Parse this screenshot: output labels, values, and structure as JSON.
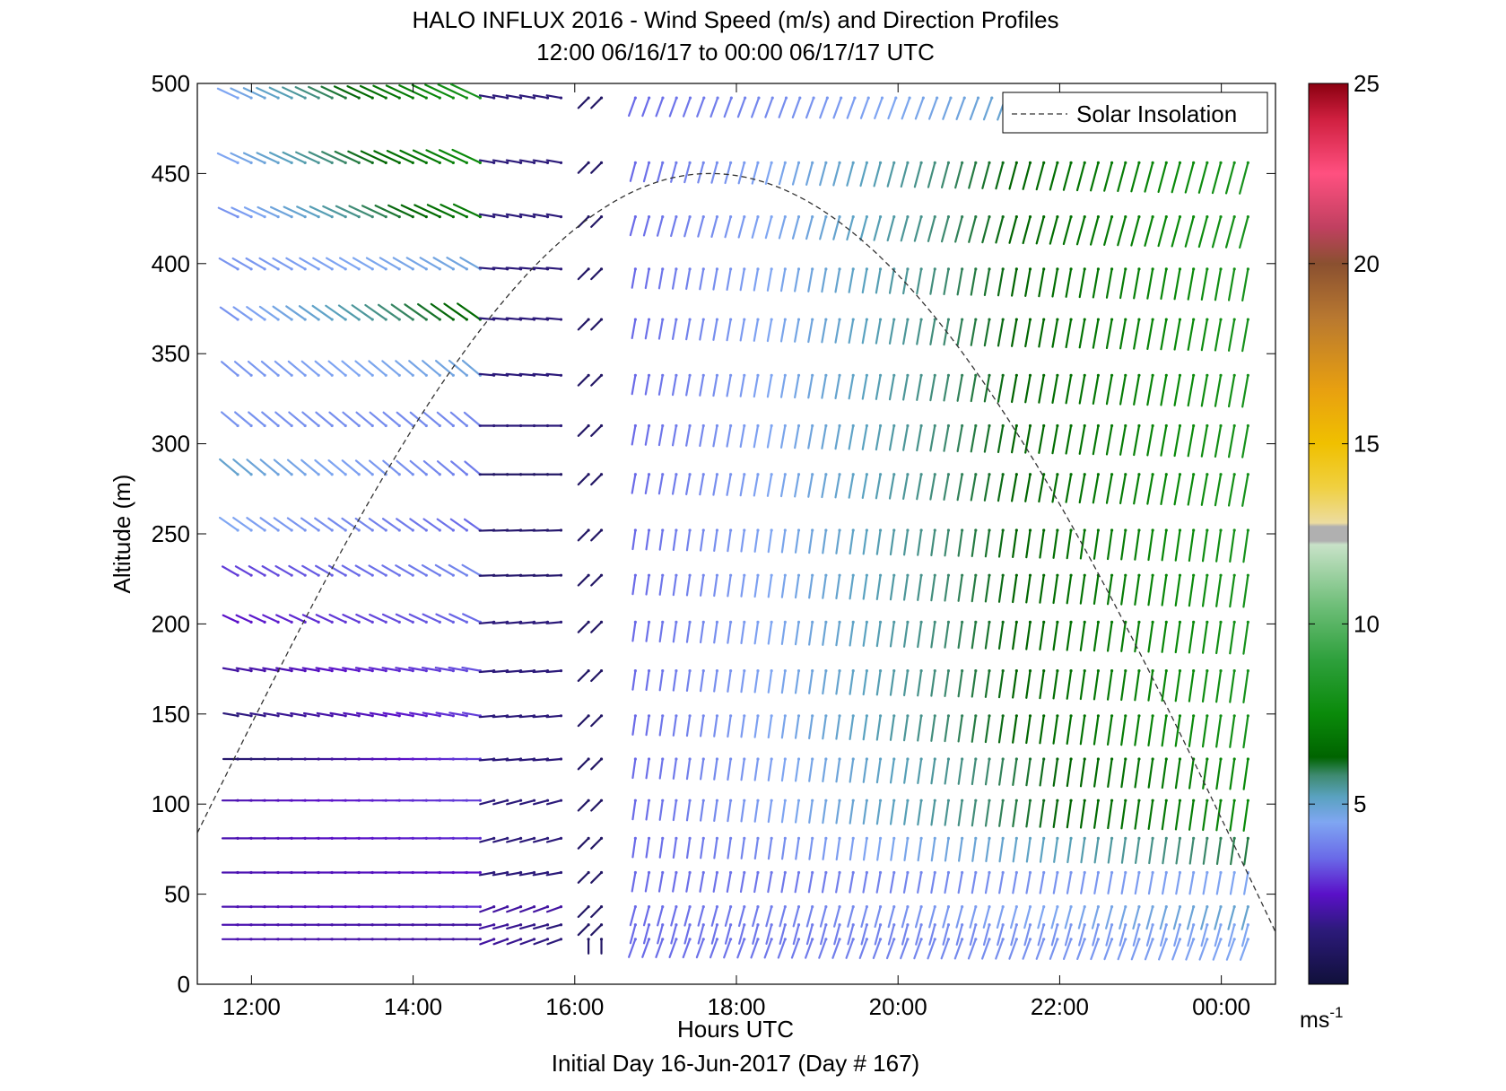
{
  "chart_data": {
    "type": "wind-barb-profile",
    "title": "HALO INFLUX 2016 - Wind Speed (m/s) and Direction Profiles",
    "subtitle": "12:00 06/16/17 to 00:00 06/17/17  UTC",
    "xlabel": "Hours UTC",
    "ylabel": "Altitude (m)",
    "footer": "Initial Day 16-Jun-2017 (Day # 167)",
    "xlim": [
      11.33,
      24.67
    ],
    "ylim": [
      0,
      500
    ],
    "x_ticks": [
      {
        "value": 12,
        "label": "12:00"
      },
      {
        "value": 14,
        "label": "14:00"
      },
      {
        "value": 16,
        "label": "16:00"
      },
      {
        "value": 18,
        "label": "18:00"
      },
      {
        "value": 20,
        "label": "20:00"
      },
      {
        "value": 22,
        "label": "22:00"
      },
      {
        "value": 24,
        "label": "00:00"
      }
    ],
    "y_ticks": [
      0,
      50,
      100,
      150,
      200,
      250,
      300,
      350,
      400,
      450,
      500
    ],
    "legend": {
      "label": "Solar Insolation",
      "placement": "top-right",
      "style": "dashed"
    },
    "solar_insolation": {
      "peak_time": 17.67,
      "peak_altitude": 450,
      "start_time": 11.33,
      "end_time": 24.67,
      "start_altitude": 84,
      "end_altitude": 29
    },
    "colorbar": {
      "min": 0,
      "max": 25,
      "ticks": [
        5,
        10,
        15,
        20,
        25
      ],
      "unit_base": "ms",
      "unit_exp": "-1",
      "stops": [
        [
          0,
          "#10103a"
        ],
        [
          1.5,
          "#2c1a7a"
        ],
        [
          2.5,
          "#5a10c8"
        ],
        [
          3.5,
          "#6a6ae8"
        ],
        [
          4.5,
          "#7fa6f2"
        ],
        [
          5.2,
          "#5aa2c0"
        ],
        [
          5.8,
          "#3e8a70"
        ],
        [
          6.3,
          "#006400"
        ],
        [
          7.5,
          "#0a8a0a"
        ],
        [
          9,
          "#2ea03c"
        ],
        [
          10.5,
          "#6ebe78"
        ],
        [
          12.2,
          "#c8e2c8"
        ],
        [
          12.3,
          "#b0b0b0"
        ],
        [
          12.7,
          "#b0b0b0"
        ],
        [
          12.8,
          "#ecdca0"
        ],
        [
          13.8,
          "#f0d040"
        ],
        [
          15,
          "#f0c000"
        ],
        [
          16.5,
          "#e8a010"
        ],
        [
          18.5,
          "#b87830"
        ],
        [
          20,
          "#8a5030"
        ],
        [
          21,
          "#c04060"
        ],
        [
          22.5,
          "#ff5080"
        ],
        [
          24,
          "#d02040"
        ],
        [
          25,
          "#8a0010"
        ]
      ]
    },
    "altitudes": [
      25,
      33,
      43,
      62,
      81,
      102,
      125,
      149,
      174,
      201,
      227,
      252,
      283,
      310,
      338,
      369,
      397,
      426,
      456,
      492
    ],
    "regimes": [
      {
        "t0": 11.83,
        "t1": 14.83,
        "levels": [
          {
            "z": 25,
            "dir": 270,
            "s0": 2.2,
            "s1": 2.0
          },
          {
            "z": 33,
            "dir": 270,
            "s0": 2.2,
            "s1": 2.0
          },
          {
            "z": 43,
            "dir": 270,
            "s0": 2.2,
            "s1": 2.8
          },
          {
            "z": 62,
            "dir": 270,
            "s0": 2.2,
            "s1": 2.5
          },
          {
            "z": 81,
            "dir": 270,
            "s0": 2.2,
            "s1": 2.8
          },
          {
            "z": 102,
            "dir": 270,
            "s0": 2.2,
            "s1": 3.0
          },
          {
            "z": 125,
            "dir": 270,
            "s0": 1.2,
            "s1": 3.0
          },
          {
            "z": 149,
            "dir": 280,
            "s0": 1.5,
            "s1": 3.0
          },
          {
            "z": 174,
            "dir": 280,
            "s0": 2.0,
            "s1": 3.2
          },
          {
            "z": 201,
            "dir": 295,
            "s0": 2.5,
            "s1": 3.5
          },
          {
            "z": 227,
            "dir": 300,
            "s0": 3.0,
            "s1": 4.0
          },
          {
            "z": 252,
            "dir": 305,
            "s0": 4.5,
            "s1": 3.5
          },
          {
            "z": 283,
            "dir": 310,
            "s0": 5.0,
            "s1": 3.8
          },
          {
            "z": 310,
            "dir": 310,
            "s0": 4.2,
            "s1": 4.0
          },
          {
            "z": 338,
            "dir": 310,
            "s0": 4.2,
            "s1": 4.8
          },
          {
            "z": 369,
            "dir": 305,
            "s0": 4.2,
            "s1": 6.5
          },
          {
            "z": 397,
            "dir": 300,
            "s0": 4.2,
            "s1": 4.8
          },
          {
            "z": 426,
            "dir": 295,
            "s0": 4.2,
            "s1": 7.0
          },
          {
            "z": 456,
            "dir": 295,
            "s0": 4.5,
            "s1": 7.5
          },
          {
            "z": 492,
            "dir": 295,
            "s0": 4.5,
            "s1": 8.0
          }
        ]
      },
      {
        "t0": 15.0,
        "t1": 15.83,
        "levels": [
          {
            "z": 25,
            "dir": 250,
            "s0": 2.0,
            "s1": 1.5
          },
          {
            "z": 33,
            "dir": 255,
            "s0": 2.0,
            "s1": 1.5
          },
          {
            "z": 43,
            "dir": 250,
            "s0": 2.0,
            "s1": 2.0
          },
          {
            "z": 62,
            "dir": 260,
            "s0": 1.5,
            "s1": 1.5
          },
          {
            "z": 81,
            "dir": 255,
            "s0": 1.5,
            "s1": 1.5
          },
          {
            "z": 102,
            "dir": 255,
            "s0": 1.5,
            "s1": 1.5
          },
          {
            "z": 125,
            "dir": 265,
            "s0": 1.5,
            "s1": 1.5
          },
          {
            "z": 149,
            "dir": 265,
            "s0": 1.5,
            "s1": 1.5
          },
          {
            "z": 174,
            "dir": 265,
            "s0": 1.5,
            "s1": 1.5
          },
          {
            "z": 201,
            "dir": 265,
            "s0": 1.5,
            "s1": 1.5
          },
          {
            "z": 227,
            "dir": 268,
            "s0": 1.2,
            "s1": 1.2
          },
          {
            "z": 252,
            "dir": 268,
            "s0": 1.2,
            "s1": 1.2
          },
          {
            "z": 283,
            "dir": 270,
            "s0": 1.0,
            "s1": 1.0
          },
          {
            "z": 310,
            "dir": 270,
            "s0": 1.5,
            "s1": 1.5
          },
          {
            "z": 338,
            "dir": 275,
            "s0": 1.5,
            "s1": 1.5
          },
          {
            "z": 369,
            "dir": 275,
            "s0": 1.5,
            "s1": 1.5
          },
          {
            "z": 397,
            "dir": 275,
            "s0": 1.5,
            "s1": 1.5
          },
          {
            "z": 426,
            "dir": 280,
            "s0": 1.5,
            "s1": 1.5
          },
          {
            "z": 456,
            "dir": 280,
            "s0": 1.5,
            "s1": 1.5
          },
          {
            "z": 492,
            "dir": 280,
            "s0": 1.5,
            "s1": 1.5
          }
        ]
      },
      {
        "t0": 16.17,
        "t1": 16.33,
        "levels": [
          {
            "z": 25,
            "dir": 180,
            "s0": 1.0,
            "s1": 1.0
          },
          {
            "z": 33,
            "dir": 225,
            "s0": 1.0,
            "s1": 1.0
          },
          {
            "z": 43,
            "dir": 225,
            "s0": 1.0,
            "s1": 1.0
          },
          {
            "z": 62,
            "dir": 225,
            "s0": 1.0,
            "s1": 1.0
          },
          {
            "z": 81,
            "dir": 225,
            "s0": 1.0,
            "s1": 1.0
          },
          {
            "z": 102,
            "dir": 225,
            "s0": 1.0,
            "s1": 1.0
          },
          {
            "z": 125,
            "dir": 225,
            "s0": 1.0,
            "s1": 1.0
          },
          {
            "z": 149,
            "dir": 225,
            "s0": 1.0,
            "s1": 1.0
          },
          {
            "z": 174,
            "dir": 225,
            "s0": 1.0,
            "s1": 1.0
          },
          {
            "z": 201,
            "dir": 225,
            "s0": 1.0,
            "s1": 1.0
          },
          {
            "z": 227,
            "dir": 225,
            "s0": 1.0,
            "s1": 1.0
          },
          {
            "z": 252,
            "dir": 225,
            "s0": 1.0,
            "s1": 1.0
          },
          {
            "z": 283,
            "dir": 225,
            "s0": 1.0,
            "s1": 1.0
          },
          {
            "z": 310,
            "dir": 225,
            "s0": 1.0,
            "s1": 1.0
          },
          {
            "z": 338,
            "dir": 225,
            "s0": 1.0,
            "s1": 1.0
          },
          {
            "z": 369,
            "dir": 225,
            "s0": 1.0,
            "s1": 1.0
          },
          {
            "z": 397,
            "dir": 225,
            "s0": 1.0,
            "s1": 1.0
          },
          {
            "z": 426,
            "dir": 225,
            "s0": 1.0,
            "s1": 1.0
          },
          {
            "z": 456,
            "dir": 225,
            "s0": 1.0,
            "s1": 1.0
          },
          {
            "z": 492,
            "dir": 225,
            "s0": 1.0,
            "s1": 1.0
          }
        ]
      },
      {
        "t0": 16.75,
        "t1": 24.33,
        "levels": [
          {
            "z": 25,
            "dir": 200,
            "s0": 3.5,
            "s1": 4.5
          },
          {
            "z": 33,
            "dir": 195,
            "s0": 3.5,
            "s1": 4.5
          },
          {
            "z": 43,
            "dir": 195,
            "s0": 3.5,
            "s1": 5.0
          },
          {
            "z": 62,
            "dir": 190,
            "s0": 3.5,
            "s1": 4.5
          },
          {
            "z": 81,
            "dir": 188,
            "s0": 3.5,
            "s1": 6.0
          },
          {
            "z": 102,
            "dir": 188,
            "s0": 3.5,
            "s1": 7.5
          },
          {
            "z": 125,
            "dir": 188,
            "s0": 3.5,
            "s1": 7.5
          },
          {
            "z": 149,
            "dir": 188,
            "s0": 3.5,
            "s1": 8.0
          },
          {
            "z": 174,
            "dir": 188,
            "s0": 3.5,
            "s1": 8.0
          },
          {
            "z": 201,
            "dir": 188,
            "s0": 3.5,
            "s1": 8.0
          },
          {
            "z": 227,
            "dir": 188,
            "s0": 3.5,
            "s1": 8.0
          },
          {
            "z": 252,
            "dir": 188,
            "s0": 3.5,
            "s1": 8.0
          },
          {
            "z": 283,
            "dir": 190,
            "s0": 3.5,
            "s1": 8.0
          },
          {
            "z": 310,
            "dir": 190,
            "s0": 3.5,
            "s1": 8.0
          },
          {
            "z": 338,
            "dir": 190,
            "s0": 3.5,
            "s1": 8.0
          },
          {
            "z": 369,
            "dir": 190,
            "s0": 3.5,
            "s1": 8.0
          },
          {
            "z": 397,
            "dir": 190,
            "s0": 3.5,
            "s1": 8.0
          },
          {
            "z": 426,
            "dir": 195,
            "s0": 3.5,
            "s1": 8.0
          },
          {
            "z": 456,
            "dir": 195,
            "s0": 3.5,
            "s1": 8.0
          },
          {
            "z": 492,
            "dir": 200,
            "s0": 3.5,
            "s1": 5.0
          }
        ]
      }
    ],
    "end_times": [
      {
        "z": 492,
        "t1": 21.5
      }
    ],
    "time_step_hours": 0.1667,
    "grid": false
  }
}
